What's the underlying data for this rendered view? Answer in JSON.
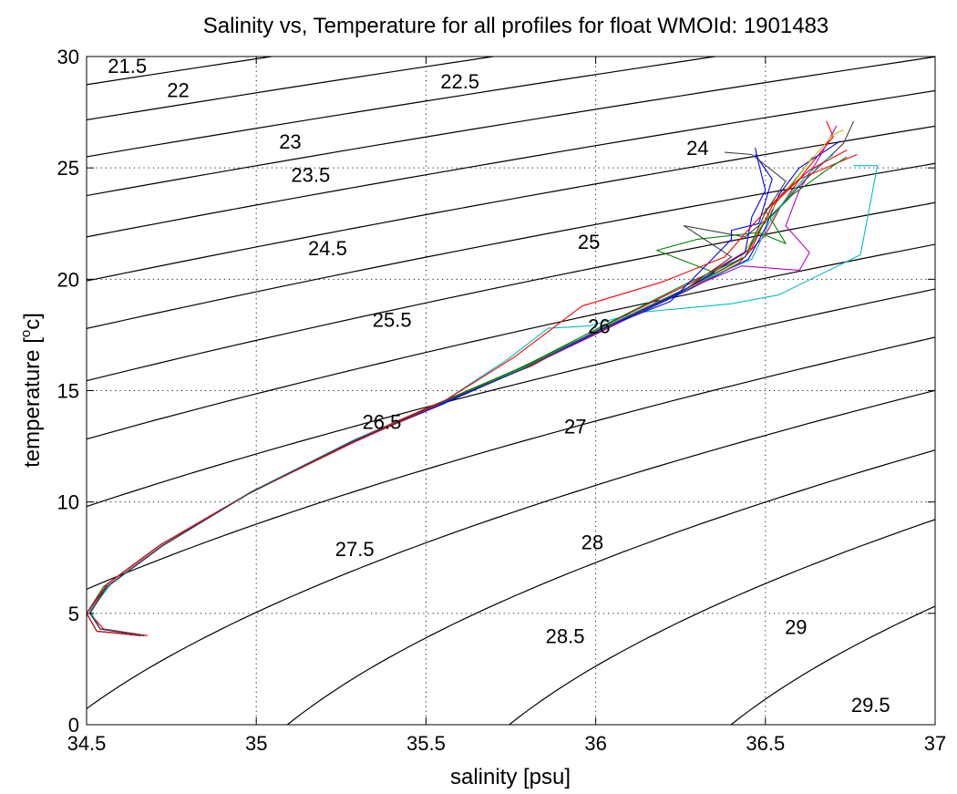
{
  "chart_data": {
    "type": "line",
    "title": "Salinity vs, Temperature for all profiles for float WMOId: 1901483",
    "xlabel": "salinity [psu]",
    "ylabel": "temperature [",
    "ylabel_sup": "o",
    "ylabel_end": "c]",
    "xlim": [
      34.5,
      37
    ],
    "ylim": [
      0,
      30
    ],
    "xticks": [
      "34.5",
      "35",
      "35.5",
      "36",
      "36.5",
      "37"
    ],
    "xtick_values": [
      34.5,
      35,
      35.5,
      36,
      36.5,
      37
    ],
    "yticks": [
      "0",
      "5",
      "10",
      "15",
      "20",
      "25",
      "30"
    ],
    "ytick_values": [
      0,
      5,
      10,
      15,
      20,
      25,
      30
    ],
    "grid": true,
    "density_contours": {
      "levels": [
        "21.5",
        "22",
        "22.5",
        "23",
        "23.5",
        "24",
        "24.5",
        "25",
        "25.5",
        "26",
        "26.5",
        "27",
        "27.5",
        "28",
        "28.5",
        "29",
        "29.5"
      ],
      "label_positions": [
        {
          "level": "21.5",
          "s": 34.62,
          "t": 29.6
        },
        {
          "level": "22",
          "s": 34.77,
          "t": 28.5
        },
        {
          "level": "22.5",
          "s": 35.6,
          "t": 28.9
        },
        {
          "level": "23",
          "s": 35.1,
          "t": 26.2
        },
        {
          "level": "23.5",
          "s": 35.16,
          "t": 24.7
        },
        {
          "level": "24",
          "s": 36.3,
          "t": 25.9
        },
        {
          "level": "24.5",
          "s": 35.21,
          "t": 21.4
        },
        {
          "level": "25",
          "s": 35.98,
          "t": 21.7
        },
        {
          "level": "25.5",
          "s": 35.4,
          "t": 18.2
        },
        {
          "level": "26",
          "s": 36.01,
          "t": 17.9
        },
        {
          "level": "26.5",
          "s": 35.37,
          "t": 13.6
        },
        {
          "level": "27",
          "s": 35.94,
          "t": 13.4
        },
        {
          "level": "27.5",
          "s": 35.29,
          "t": 7.9
        },
        {
          "level": "28",
          "s": 35.99,
          "t": 8.2
        },
        {
          "level": "28.5",
          "s": 35.91,
          "t": 4.0
        },
        {
          "level": "29",
          "s": 36.59,
          "t": 4.4
        },
        {
          "level": "29.5",
          "s": 36.81,
          "t": 0.9
        }
      ]
    },
    "series": [
      {
        "color": "#ff0000",
        "values": [
          [
            34.68,
            4.0
          ],
          [
            34.55,
            4.3
          ],
          [
            34.51,
            5.0
          ],
          [
            34.56,
            6.2
          ],
          [
            34.72,
            8.0
          ],
          [
            34.98,
            10.4
          ],
          [
            35.28,
            12.7
          ],
          [
            35.52,
            14.3
          ],
          [
            35.78,
            16.0
          ],
          [
            36.0,
            17.6
          ],
          [
            36.25,
            19.4
          ],
          [
            36.42,
            20.7
          ],
          [
            36.5,
            22.0
          ],
          [
            36.55,
            23.4
          ],
          [
            36.62,
            24.9
          ],
          [
            36.7,
            26.4
          ],
          [
            36.68,
            27.1
          ]
        ]
      },
      {
        "color": "#0000ff",
        "values": [
          [
            34.66,
            4.0
          ],
          [
            34.54,
            4.3
          ],
          [
            34.51,
            5.1
          ],
          [
            34.57,
            6.3
          ],
          [
            34.73,
            8.1
          ],
          [
            34.99,
            10.5
          ],
          [
            35.3,
            12.8
          ],
          [
            35.55,
            14.4
          ],
          [
            35.8,
            16.1
          ],
          [
            36.02,
            17.7
          ],
          [
            36.27,
            19.5
          ],
          [
            36.45,
            20.9
          ],
          [
            36.5,
            22.3
          ],
          [
            36.54,
            23.8
          ],
          [
            36.6,
            25.0
          ],
          [
            36.69,
            25.9
          ],
          [
            36.72,
            26.2
          ]
        ]
      },
      {
        "color": "#008000",
        "values": [
          [
            34.67,
            4.0
          ],
          [
            34.53,
            4.2
          ],
          [
            34.5,
            5.0
          ],
          [
            34.55,
            6.2
          ],
          [
            34.71,
            8.0
          ],
          [
            34.97,
            10.3
          ],
          [
            35.27,
            12.6
          ],
          [
            35.5,
            14.2
          ],
          [
            35.76,
            15.9
          ],
          [
            35.98,
            17.5
          ],
          [
            36.22,
            19.2
          ],
          [
            36.35,
            20.3
          ],
          [
            36.18,
            21.3
          ],
          [
            36.3,
            21.8
          ],
          [
            36.48,
            22.1
          ],
          [
            36.56,
            21.6
          ],
          [
            36.5,
            23.1
          ],
          [
            36.58,
            24.3
          ],
          [
            36.64,
            25.5
          ]
        ]
      },
      {
        "color": "#00bfbf",
        "values": [
          [
            34.66,
            4.0
          ],
          [
            34.53,
            4.2
          ],
          [
            34.5,
            5.0
          ],
          [
            34.56,
            6.3
          ],
          [
            34.72,
            8.1
          ],
          [
            34.98,
            10.4
          ],
          [
            35.29,
            12.7
          ],
          [
            35.54,
            14.4
          ],
          [
            35.74,
            16.4
          ],
          [
            35.86,
            17.8
          ],
          [
            35.98,
            17.9
          ],
          [
            36.12,
            18.5
          ],
          [
            36.4,
            18.9
          ],
          [
            36.54,
            19.3
          ],
          [
            36.78,
            21.1
          ],
          [
            36.83,
            25.1
          ],
          [
            36.76,
            25.1
          ]
        ]
      },
      {
        "color": "#bf00bf",
        "values": [
          [
            34.67,
            4.0
          ],
          [
            34.54,
            4.3
          ],
          [
            34.51,
            5.1
          ],
          [
            34.57,
            6.3
          ],
          [
            34.73,
            8.1
          ],
          [
            34.99,
            10.5
          ],
          [
            35.3,
            12.8
          ],
          [
            35.54,
            14.4
          ],
          [
            35.79,
            16.0
          ],
          [
            36.01,
            17.6
          ],
          [
            36.26,
            19.5
          ],
          [
            36.43,
            20.6
          ],
          [
            36.6,
            20.4
          ],
          [
            36.63,
            21.2
          ],
          [
            36.56,
            22.4
          ],
          [
            36.6,
            24.0
          ],
          [
            36.66,
            25.5
          ],
          [
            36.71,
            26.9
          ]
        ]
      },
      {
        "color": "#bfbf00",
        "values": [
          [
            34.67,
            4.0
          ],
          [
            34.54,
            4.3
          ],
          [
            34.51,
            5.0
          ],
          [
            34.56,
            6.2
          ],
          [
            34.72,
            8.0
          ],
          [
            34.98,
            10.4
          ],
          [
            35.28,
            12.7
          ],
          [
            35.52,
            14.3
          ],
          [
            35.78,
            16.0
          ],
          [
            36.0,
            17.6
          ],
          [
            36.25,
            19.4
          ],
          [
            36.42,
            20.8
          ],
          [
            36.48,
            22.2
          ],
          [
            36.54,
            23.6
          ],
          [
            36.62,
            25.1
          ],
          [
            36.7,
            26.5
          ],
          [
            36.73,
            26.7
          ]
        ]
      },
      {
        "color": "#404040",
        "values": [
          [
            34.66,
            4.0
          ],
          [
            34.53,
            4.2
          ],
          [
            34.5,
            5.0
          ],
          [
            34.56,
            6.2
          ],
          [
            34.72,
            8.0
          ],
          [
            34.98,
            10.4
          ],
          [
            35.28,
            12.7
          ],
          [
            35.52,
            14.3
          ],
          [
            35.78,
            16.0
          ],
          [
            36.0,
            17.6
          ],
          [
            36.25,
            19.4
          ],
          [
            36.4,
            21.0
          ],
          [
            36.26,
            22.4
          ],
          [
            36.44,
            21.9
          ],
          [
            36.52,
            22.9
          ],
          [
            36.62,
            24.5
          ],
          [
            36.73,
            26.1
          ],
          [
            36.76,
            27.1
          ]
        ]
      },
      {
        "color": "#ff0000",
        "values": [
          [
            34.67,
            4.0
          ],
          [
            34.54,
            4.3
          ],
          [
            34.51,
            5.1
          ],
          [
            34.57,
            6.3
          ],
          [
            34.73,
            8.1
          ],
          [
            34.99,
            10.5
          ],
          [
            35.29,
            12.8
          ],
          [
            35.53,
            14.4
          ],
          [
            35.81,
            16.1
          ],
          [
            36.05,
            18.1
          ],
          [
            36.29,
            19.9
          ],
          [
            36.46,
            21.4
          ],
          [
            36.52,
            23.3
          ],
          [
            36.6,
            24.5
          ],
          [
            36.77,
            25.6
          ]
        ]
      },
      {
        "color": "#0000ff",
        "values": [
          [
            34.66,
            4.0
          ],
          [
            34.53,
            4.2
          ],
          [
            34.5,
            5.0
          ],
          [
            34.56,
            6.3
          ],
          [
            34.72,
            8.1
          ],
          [
            34.98,
            10.4
          ],
          [
            35.28,
            12.7
          ],
          [
            35.53,
            14.3
          ],
          [
            35.79,
            16.0
          ],
          [
            36.01,
            17.7
          ],
          [
            36.26,
            19.5
          ],
          [
            36.44,
            21.2
          ],
          [
            36.46,
            22.8
          ],
          [
            36.5,
            24.0
          ],
          [
            36.48,
            25.2
          ],
          [
            36.47,
            25.9
          ]
        ]
      },
      {
        "color": "#008000",
        "values": [
          [
            34.67,
            4.0
          ],
          [
            34.54,
            4.3
          ],
          [
            34.51,
            5.0
          ],
          [
            34.56,
            6.2
          ],
          [
            34.72,
            8.0
          ],
          [
            34.98,
            10.4
          ],
          [
            35.28,
            12.7
          ],
          [
            35.52,
            14.3
          ],
          [
            35.79,
            16.1
          ],
          [
            36.02,
            17.9
          ],
          [
            36.28,
            19.9
          ],
          [
            36.44,
            21.0
          ],
          [
            36.49,
            22.4
          ],
          [
            36.58,
            23.8
          ],
          [
            36.68,
            24.9
          ],
          [
            36.74,
            25.5
          ]
        ]
      },
      {
        "color": "#00bfbf",
        "values": [
          [
            34.67,
            4.0
          ],
          [
            34.54,
            4.3
          ],
          [
            34.51,
            5.1
          ],
          [
            34.57,
            6.3
          ],
          [
            34.73,
            8.1
          ],
          [
            34.99,
            10.5
          ],
          [
            35.29,
            12.8
          ],
          [
            35.54,
            14.4
          ],
          [
            35.8,
            16.1
          ],
          [
            36.03,
            17.9
          ],
          [
            36.28,
            19.7
          ],
          [
            36.46,
            20.9
          ],
          [
            36.51,
            22.5
          ],
          [
            36.56,
            23.6
          ],
          [
            36.63,
            24.8
          ],
          [
            36.7,
            25.6
          ]
        ]
      },
      {
        "color": "#0000ff",
        "values": [
          [
            34.67,
            4.0
          ],
          [
            34.54,
            4.3
          ],
          [
            34.51,
            5.0
          ],
          [
            34.56,
            6.2
          ],
          [
            34.72,
            8.0
          ],
          [
            34.98,
            10.4
          ],
          [
            35.28,
            12.7
          ],
          [
            35.53,
            14.3
          ],
          [
            35.79,
            16.0
          ],
          [
            36.02,
            17.8
          ],
          [
            36.22,
            19.0
          ],
          [
            36.33,
            20.7
          ],
          [
            36.4,
            21.8
          ],
          [
            36.4,
            22.2
          ],
          [
            36.48,
            22.5
          ],
          [
            36.52,
            24.5
          ],
          [
            36.47,
            25.6
          ]
        ]
      },
      {
        "color": "#ff0000",
        "values": [
          [
            34.66,
            4.0
          ],
          [
            34.53,
            4.2
          ],
          [
            34.5,
            5.0
          ],
          [
            34.56,
            6.3
          ],
          [
            34.72,
            8.1
          ],
          [
            34.98,
            10.4
          ],
          [
            35.29,
            12.7
          ],
          [
            35.54,
            14.4
          ],
          [
            35.76,
            16.5
          ],
          [
            35.96,
            18.8
          ],
          [
            36.2,
            19.9
          ],
          [
            36.38,
            21.0
          ],
          [
            36.46,
            22.4
          ],
          [
            36.54,
            23.7
          ],
          [
            36.63,
            24.9
          ],
          [
            36.74,
            25.8
          ]
        ]
      },
      {
        "color": "#404040",
        "values": [
          [
            34.67,
            4.0
          ],
          [
            34.54,
            4.3
          ],
          [
            34.51,
            5.0
          ],
          [
            34.56,
            6.2
          ],
          [
            34.72,
            8.0
          ],
          [
            34.98,
            10.4
          ],
          [
            35.28,
            12.7
          ],
          [
            35.52,
            14.3
          ],
          [
            35.79,
            16.0
          ],
          [
            36.01,
            17.7
          ],
          [
            36.27,
            19.6
          ],
          [
            36.44,
            21.0
          ],
          [
            36.5,
            23.0
          ],
          [
            36.56,
            24.4
          ],
          [
            36.46,
            25.6
          ],
          [
            36.38,
            25.7
          ]
        ]
      }
    ]
  }
}
